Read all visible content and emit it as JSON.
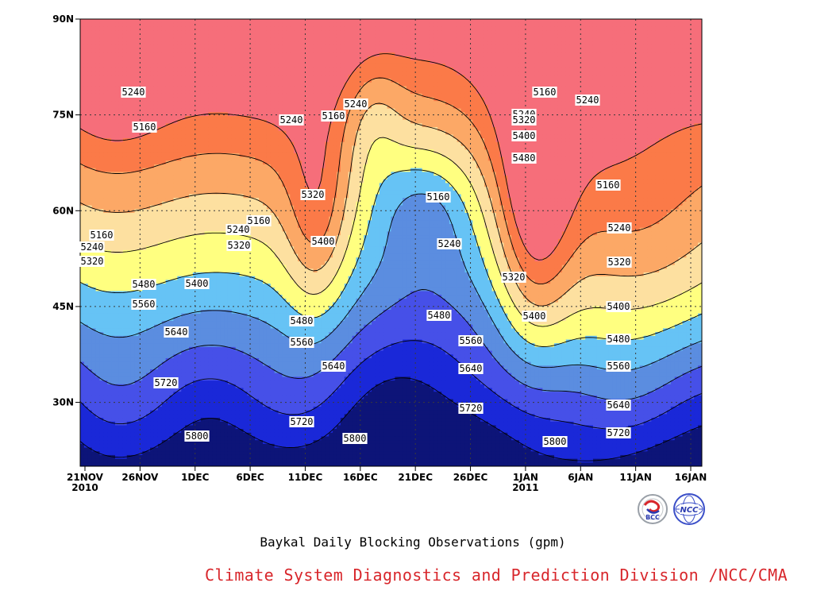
{
  "chart_data": {
    "type": "contour",
    "caption": "Baykal Daily Blocking Observations (gpm)",
    "y_tick_labels": [
      "90N",
      "75N",
      "60N",
      "45N",
      "30N"
    ],
    "x_tick_labels": [
      {
        "day": "21NOV",
        "year": "2010"
      },
      {
        "day": "26NOV",
        "year": ""
      },
      {
        "day": "1DEC",
        "year": ""
      },
      {
        "day": "6DEC",
        "year": ""
      },
      {
        "day": "11DEC",
        "year": ""
      },
      {
        "day": "16DEC",
        "year": ""
      },
      {
        "day": "21DEC",
        "year": ""
      },
      {
        "day": "26DEC",
        "year": ""
      },
      {
        "day": "1JAN",
        "year": "2011"
      },
      {
        "day": "6JAN",
        "year": ""
      },
      {
        "day": "11JAN",
        "year": ""
      },
      {
        "day": "16JAN",
        "year": ""
      }
    ],
    "ylim": [
      20,
      90
    ],
    "grid": true,
    "contour_levels": [
      5160,
      5240,
      5320,
      5400,
      5480,
      5560,
      5640,
      5720,
      5800
    ],
    "fill_colors": [
      "#0d1478",
      "#1a28d8",
      "#4650e8",
      "#5b8de0",
      "#66c3f5",
      "#ffff80",
      "#fde0a0",
      "#fca866",
      "#fb7a48",
      "#f66e7a"
    ],
    "contour_labels": [
      "5160",
      "5240",
      "5320",
      "5400",
      "5480",
      "5560",
      "5640",
      "5720",
      "5800"
    ]
  },
  "logos": {
    "left": "BCC",
    "right": "NCC"
  },
  "footer": "Climate System Diagnostics and Prediction Division /NCC/CMA"
}
